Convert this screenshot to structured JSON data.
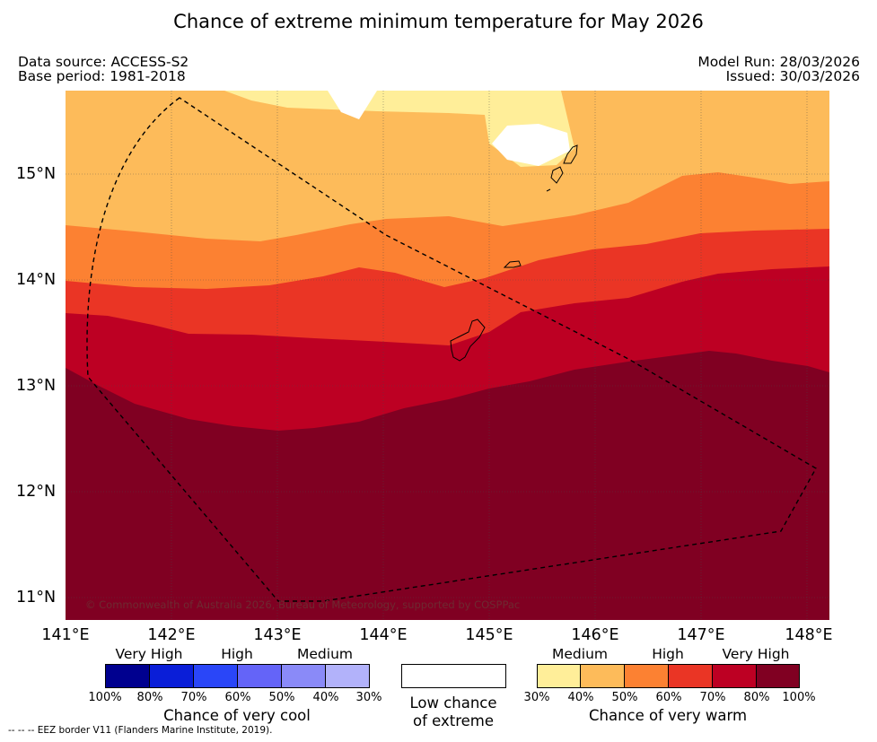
{
  "title": "Chance of extreme minimum temperature for May 2026",
  "data_source": "Data source: ACCESS-S2",
  "base_period": "Base period: 1981-2018",
  "model_run": "Model Run: 28/03/2026",
  "issued": "Issued: 30/03/2026",
  "map": {
    "lat_labels": [
      "15°N",
      "14°N",
      "13°N",
      "12°N",
      "11°N"
    ],
    "lon_labels": [
      "141°E",
      "142°E",
      "143°E",
      "144°E",
      "145°E",
      "146°E",
      "147°E",
      "148°E"
    ],
    "copyright": "© Commonwealth of Australia 2026, Bureau of Meteorology, supported by COSPPac",
    "colors": {
      "30-40": "#ffee99",
      "40-50": "#fdbb5a",
      "50-60": "#fc8132",
      "60-70": "#ea3525",
      "70-80": "#bd0023",
      "80-100": "#800022",
      "low": "#ffffff"
    }
  },
  "legend": {
    "cool": {
      "headers": [
        "Very High",
        "High",
        "Medium"
      ],
      "ticks": [
        "100%",
        "80%",
        "70%",
        "60%",
        "50%",
        "40%",
        "30%"
      ],
      "title": "Chance of very cool",
      "colors": [
        "#00008f",
        "#0a1ed8",
        "#2a46f8",
        "#6464f8",
        "#8a8af8",
        "#b2b2fa"
      ]
    },
    "low": {
      "line1": "Low chance",
      "line2": "of extreme"
    },
    "warm": {
      "headers": [
        "Medium",
        "High",
        "Very High"
      ],
      "ticks": [
        "30%",
        "40%",
        "50%",
        "60%",
        "70%",
        "80%",
        "100%"
      ],
      "title": "Chance of very warm",
      "colors": [
        "#ffee99",
        "#fdbb5a",
        "#fc8132",
        "#ea3525",
        "#bd0023",
        "#800022"
      ]
    }
  },
  "footnote": "--  --  -- EEZ border V11 (Flanders Marine Institute, 2019)."
}
